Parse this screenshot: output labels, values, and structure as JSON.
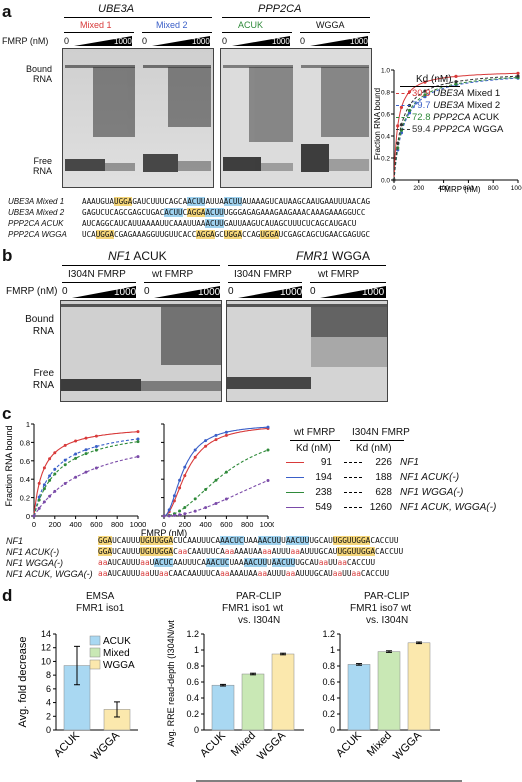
{
  "panel_a": {
    "letter": "a",
    "gene1": "UBE3A",
    "gene2": "PPP2CA",
    "lanes": [
      "Mixed 1",
      "Mixed 2",
      "ACUK",
      "WGGA"
    ],
    "lane_colors": [
      "#d83a3a",
      "#3a5fc8",
      "#2f8a3a",
      "#111111"
    ],
    "fmrp_label": "FMRP (nM)",
    "zero": "0",
    "max": "1000",
    "bound_label": "Bound\nRNA",
    "free_label": "Free\nRNA",
    "plot": {
      "ylabel": "Fraction RNA bound",
      "xlabel": "FMRP (nM)",
      "legend_title": "Kd (nM)",
      "yticks": [
        "0.0",
        "0.2",
        "0.4",
        "0.6",
        "0.8",
        "1.0"
      ],
      "xticks": [
        "0",
        "200",
        "400",
        "600",
        "800",
        "1000"
      ],
      "legend": [
        {
          "kd": "30.9",
          "gene": "UBE3A",
          "name": "Mixed 1",
          "color": "#d83a3a"
        },
        {
          "kd": "79.7",
          "gene": "UBE3A",
          "name": "Mixed 2",
          "color": "#3a5fc8"
        },
        {
          "kd": "72.8",
          "gene": "PPP2CA",
          "name": "ACUK",
          "color": "#2f8a3a"
        },
        {
          "kd": "59.4",
          "gene": "PPP2CA",
          "name": "WGGA",
          "color": "#333333"
        }
      ]
    },
    "seq_labels": [
      "UBE3A Mixed 1",
      "UBE3A Mixed 2",
      "PPP2CA ACUK",
      "PPP2CA WGGA"
    ]
  },
  "panel_b": {
    "letter": "b",
    "gene1": "NF1",
    "motif1": "ACUK",
    "gene2": "FMR1",
    "motif2": "WGGA",
    "lanes": [
      "I304N FMRP",
      "wt FMRP",
      "I304N FMRP",
      "wt FMRP"
    ],
    "fmrp_label": "FMRP (nM)",
    "zero": "0",
    "max": "1000",
    "bound_label": "Bound\nRNA",
    "free_label": "Free\nRNA"
  },
  "panel_c": {
    "letter": "c",
    "ylabel": "Fraction RNA bound",
    "xlabel": "FMRP (nM)",
    "yticks": [
      "0",
      "0.2",
      "0.4",
      "0.6",
      "0.8",
      "1"
    ],
    "xticks": [
      "0",
      "200",
      "400",
      "600",
      "800",
      "1000"
    ],
    "legend_wt": "wt FMRP",
    "legend_mut": "I304N FMRP",
    "kd_label": "Kd (nM)",
    "rows": [
      {
        "wt": "91",
        "mut": "226",
        "name": "NF1",
        "color": "#d83a3a"
      },
      {
        "wt": "194",
        "mut": "188",
        "name": "NF1 ACUK(-)",
        "color": "#3a5fc8"
      },
      {
        "wt": "238",
        "mut": "628",
        "name": "NF1 WGGA(-)",
        "color": "#2f8a3a"
      },
      {
        "wt": "549",
        "mut": "1260",
        "name": "NF1 ACUK, WGGA(-)",
        "color": "#7a4aa8"
      }
    ],
    "seq_labels": [
      "NF1",
      "NF1 ACUK(-)",
      "NF1 WGGA(-)",
      "NF1 ACUK, WGGA(-)"
    ]
  },
  "panel_d": {
    "letter": "d",
    "chart1_title": "EMSA",
    "chart1_sub": "FMR1 iso1",
    "chart1_ylabel": "Avg. fold decrease",
    "chart2_title": "PAR-CLIP",
    "chart2_sub": "FMR1 iso1 wt",
    "chart2_sub2": "vs. I304N",
    "chart2_ylabel": "Avg. RRE read-depth (I304N/wt)",
    "chart3_title": "PAR-CLIP",
    "chart3_sub": "FMR1 iso7 wt",
    "chart3_sub2": "vs. I304N",
    "legend": [
      "ACUK",
      "Mixed",
      "WGGA"
    ]
  },
  "chart_data": [
    {
      "type": "line",
      "title": "",
      "xlabel": "FMRP (nM)",
      "ylabel": "Fraction RNA bound",
      "xlim": [
        0,
        1000
      ],
      "ylim": [
        0,
        1
      ],
      "series": [
        {
          "name": "UBE3A Mixed 1",
          "kd": 30.9,
          "color": "#d83a3a"
        },
        {
          "name": "UBE3A Mixed 2",
          "kd": 79.7,
          "color": "#3a5fc8"
        },
        {
          "name": "PPP2CA ACUK",
          "kd": 72.8,
          "color": "#2f8a3a"
        },
        {
          "name": "PPP2CA WGGA",
          "kd": 59.4,
          "color": "#333333"
        }
      ]
    },
    {
      "type": "line",
      "title": "",
      "xlabel": "FMRP (nM)",
      "ylabel": "Fraction RNA bound",
      "xlim": [
        0,
        1000
      ],
      "ylim": [
        0,
        1
      ],
      "series": [
        {
          "name": "NF1",
          "kd": 91,
          "color": "#d83a3a"
        },
        {
          "name": "NF1 ACUK(-)",
          "kd": 194,
          "color": "#3a5fc8"
        },
        {
          "name": "NF1 WGGA(-)",
          "kd": 238,
          "color": "#2f8a3a"
        },
        {
          "name": "NF1 ACUK, WGGA(-)",
          "kd": 549,
          "color": "#7a4aa8"
        }
      ]
    },
    {
      "type": "line",
      "title": "",
      "xlabel": "FMRP (nM)",
      "ylabel": "",
      "xlim": [
        0,
        1000
      ],
      "ylim": [
        0,
        1
      ],
      "series": [
        {
          "name": "NF1",
          "kd": 226,
          "color": "#d83a3a"
        },
        {
          "name": "NF1 ACUK(-)",
          "kd": 188,
          "color": "#3a5fc8"
        },
        {
          "name": "NF1 WGGA(-)",
          "kd": 628,
          "color": "#2f8a3a"
        },
        {
          "name": "NF1 ACUK, WGGA(-)",
          "kd": 1260,
          "color": "#7a4aa8"
        }
      ]
    },
    {
      "type": "bar",
      "title": "EMSA FMR1 iso1",
      "ylabel": "Avg. fold decrease",
      "categories": [
        "ACUK",
        "WGGA"
      ],
      "values": [
        9.4,
        3.0
      ],
      "errors": [
        2.8,
        1.1
      ],
      "colors": [
        "#a9d8f2",
        "#fbe8ad"
      ],
      "ylim": [
        0,
        14
      ],
      "yticks": [
        "0",
        "2",
        "4",
        "6",
        "8",
        "10",
        "12",
        "14"
      ]
    },
    {
      "type": "bar",
      "title": "PAR-CLIP FMR1 iso1 wt vs. I304N",
      "ylabel": "Avg. RRE read-depth (I304N/wt)",
      "categories": [
        "ACUK",
        "Mixed",
        "WGGA"
      ],
      "values": [
        0.56,
        0.7,
        0.95
      ],
      "errors": [
        0.01,
        0.01,
        0.01
      ],
      "colors": [
        "#a9d8f2",
        "#c9e8b5",
        "#fbe8ad"
      ],
      "ylim": [
        0,
        1.2
      ],
      "yticks": [
        "0",
        "0.2",
        "0.4",
        "0.6",
        "0.8",
        "1",
        "1.2"
      ]
    },
    {
      "type": "bar",
      "title": "PAR-CLIP FMR1 iso7 wt vs. I304N",
      "ylabel": "",
      "categories": [
        "ACUK",
        "Mixed",
        "WGGA"
      ],
      "values": [
        0.82,
        0.98,
        1.09
      ],
      "errors": [
        0.01,
        0.01,
        0.01
      ],
      "colors": [
        "#a9d8f2",
        "#c9e8b5",
        "#fbe8ad"
      ],
      "ylim": [
        0,
        1.2
      ],
      "yticks": [
        "0",
        "0.2",
        "0.4",
        "0.6",
        "0.8",
        "1",
        "1.2"
      ]
    }
  ]
}
